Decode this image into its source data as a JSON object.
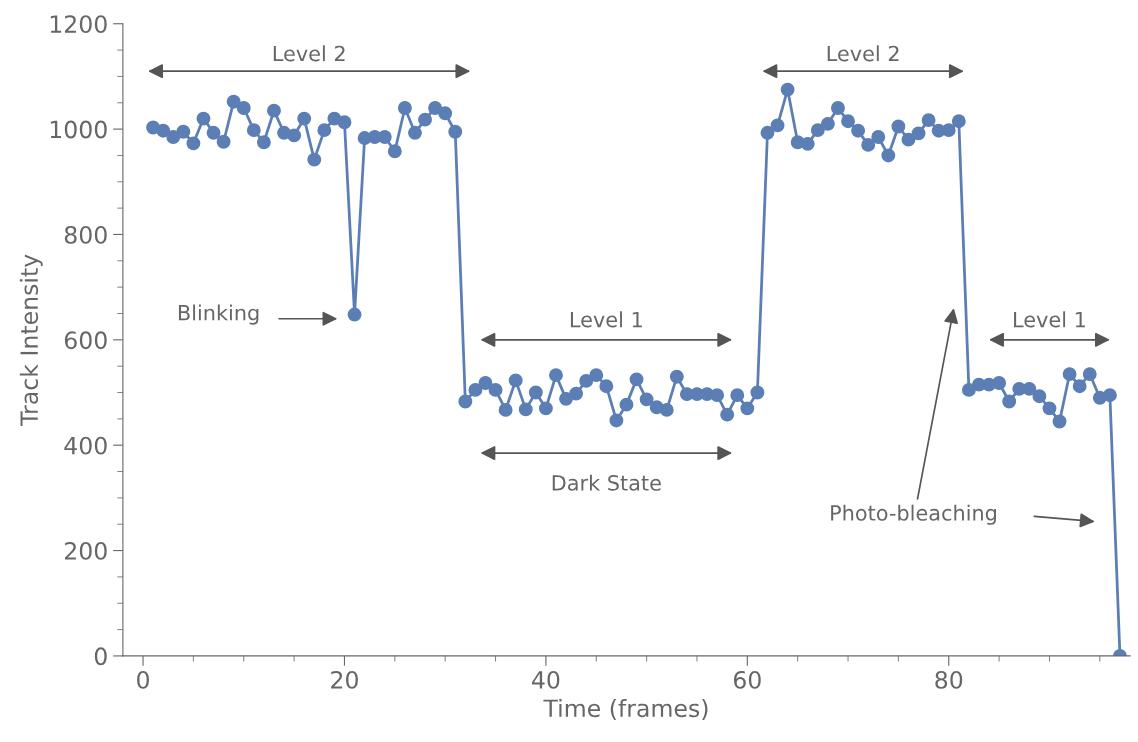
{
  "chart_data": {
    "type": "line",
    "xlabel": "Time (frames)",
    "ylabel": "Track Intensity",
    "x": [
      1,
      2,
      3,
      4,
      5,
      6,
      7,
      8,
      9,
      10,
      11,
      12,
      13,
      14,
      15,
      16,
      17,
      18,
      19,
      20,
      21,
      22,
      23,
      24,
      25,
      26,
      27,
      28,
      29,
      30,
      31,
      32,
      33,
      34,
      35,
      36,
      37,
      38,
      39,
      40,
      41,
      42,
      43,
      44,
      45,
      46,
      47,
      48,
      49,
      50,
      51,
      52,
      53,
      54,
      55,
      56,
      57,
      58,
      59,
      60,
      61,
      62,
      63,
      64,
      65,
      66,
      67,
      68,
      69,
      70,
      71,
      72,
      73,
      74,
      75,
      76,
      77,
      78,
      79,
      80,
      81,
      82,
      83,
      84,
      85,
      86,
      87,
      88,
      89,
      90,
      91,
      92,
      93,
      94,
      95,
      96,
      97
    ],
    "series": [
      {
        "color": "#5b7fb5",
        "values": [
          1003,
          997,
          985,
          995,
          973,
          1020,
          993,
          976,
          1052,
          1040,
          998,
          975,
          1035,
          993,
          988,
          1020,
          942,
          998,
          1020,
          1013,
          648,
          983,
          985,
          985,
          958,
          1040,
          993,
          1018,
          1040,
          1030,
          995,
          483,
          505,
          518,
          505,
          467,
          523,
          468,
          500,
          470,
          533,
          488,
          498,
          522,
          533,
          512,
          447,
          477,
          525,
          487,
          472,
          467,
          530,
          497,
          497,
          497,
          495,
          458,
          495,
          470,
          500,
          993,
          1007,
          1075,
          975,
          972,
          998,
          1010,
          1040,
          1015,
          997,
          970,
          985,
          950,
          1005,
          980,
          992,
          1017,
          997,
          998,
          1015,
          505,
          515,
          515,
          518,
          483,
          507,
          507,
          493,
          470,
          445,
          535,
          512,
          535,
          490,
          495,
          0
        ]
      }
    ],
    "marker": "circle",
    "line_style": "solid",
    "grid": false,
    "legend": false,
    "xlim": [
      -2,
      98
    ],
    "xticks": [
      0,
      20,
      40,
      60,
      80
    ],
    "ylim": [
      0,
      1200
    ],
    "yticks": [
      0,
      200,
      400,
      600,
      800,
      1000,
      1200
    ],
    "annotations": [
      "Level 2",
      "Level 2",
      "Level 1",
      "Level 1",
      "Dark State",
      "Blinking",
      "Photo-bleaching"
    ]
  }
}
